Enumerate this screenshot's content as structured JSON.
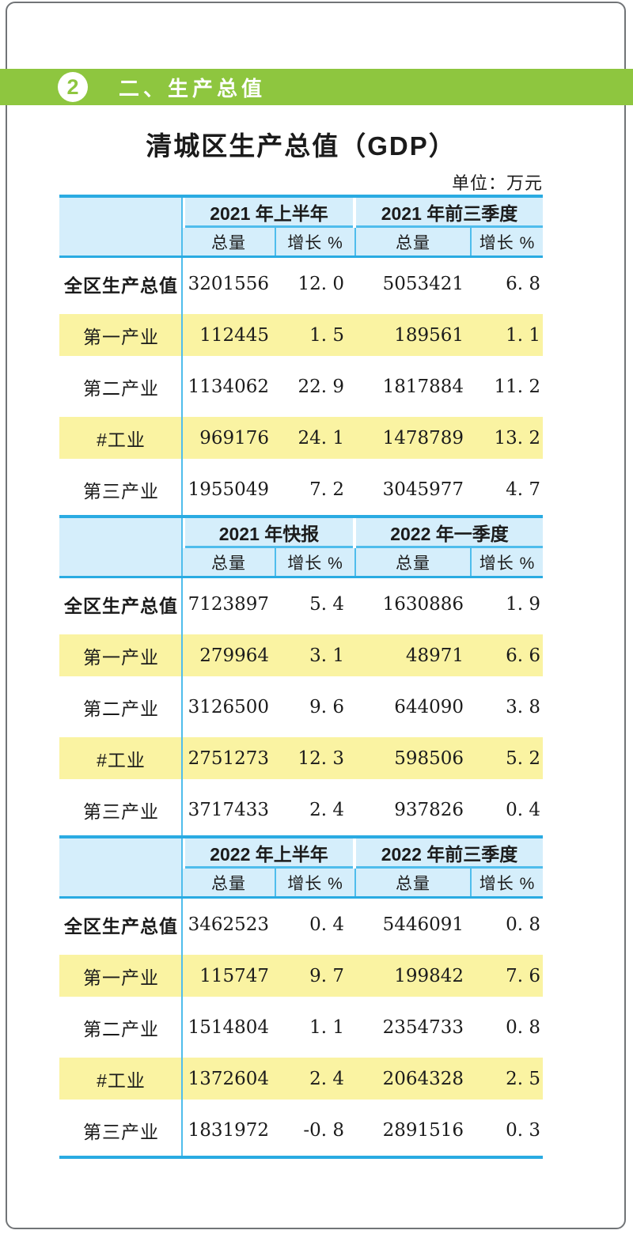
{
  "banner": {
    "badge": "2",
    "title": "二、生产总值"
  },
  "title": "清城区生产总值（GDP）",
  "unit_note": "单位：万元",
  "colors": {
    "banner_green": "#8ec63f",
    "table_border_cyan": "#2aabe2",
    "header_fill_blue": "#d5eefb",
    "highlight_row_yellow": "#faf3a2"
  },
  "table": {
    "col_headers": {
      "total": "总量",
      "growth": "增长 %"
    },
    "sections": [
      {
        "period1": "2021 年上半年",
        "period2": "2021 年前三季度",
        "rows": [
          {
            "label": "全区生产总值",
            "v1": "3201556",
            "g1": "12. 0",
            "v2": "5053421",
            "g2": "6. 8"
          },
          {
            "label": "第一产业",
            "v1": "112445",
            "g1": "1. 5",
            "v2": "189561",
            "g2": "1. 1"
          },
          {
            "label": "第二产业",
            "v1": "1134062",
            "g1": "22. 9",
            "v2": "1817884",
            "g2": "11. 2"
          },
          {
            "label": "#工业",
            "v1": "969176",
            "g1": "24. 1",
            "v2": "1478789",
            "g2": "13. 2"
          },
          {
            "label": "第三产业",
            "v1": "1955049",
            "g1": "7. 2",
            "v2": "3045977",
            "g2": "4. 7"
          }
        ]
      },
      {
        "period1": "2021 年快报",
        "period2": "2022 年一季度",
        "rows": [
          {
            "label": "全区生产总值",
            "v1": "7123897",
            "g1": "5. 4",
            "v2": "1630886",
            "g2": "1. 9"
          },
          {
            "label": "第一产业",
            "v1": "279964",
            "g1": "3. 1",
            "v2": "48971",
            "g2": "6. 6"
          },
          {
            "label": "第二产业",
            "v1": "3126500",
            "g1": "9. 6",
            "v2": "644090",
            "g2": "3. 8"
          },
          {
            "label": "#工业",
            "v1": "2751273",
            "g1": "12. 3",
            "v2": "598506",
            "g2": "5. 2"
          },
          {
            "label": "第三产业",
            "v1": "3717433",
            "g1": "2. 4",
            "v2": "937826",
            "g2": "0. 4"
          }
        ]
      },
      {
        "period1": "2022 年上半年",
        "period2": "2022 年前三季度",
        "rows": [
          {
            "label": "全区生产总值",
            "v1": "3462523",
            "g1": "0. 4",
            "v2": "5446091",
            "g2": "0. 8"
          },
          {
            "label": "第一产业",
            "v1": "115747",
            "g1": "9. 7",
            "v2": "199842",
            "g2": "7. 6"
          },
          {
            "label": "第二产业",
            "v1": "1514804",
            "g1": "1. 1",
            "v2": "2354733",
            "g2": "0. 8"
          },
          {
            "label": "#工业",
            "v1": "1372604",
            "g1": "2. 4",
            "v2": "2064328",
            "g2": "2. 5"
          },
          {
            "label": "第三产业",
            "v1": "1831972",
            "g1": "-0. 8",
            "v2": "2891516",
            "g2": "0. 3"
          }
        ]
      }
    ]
  }
}
